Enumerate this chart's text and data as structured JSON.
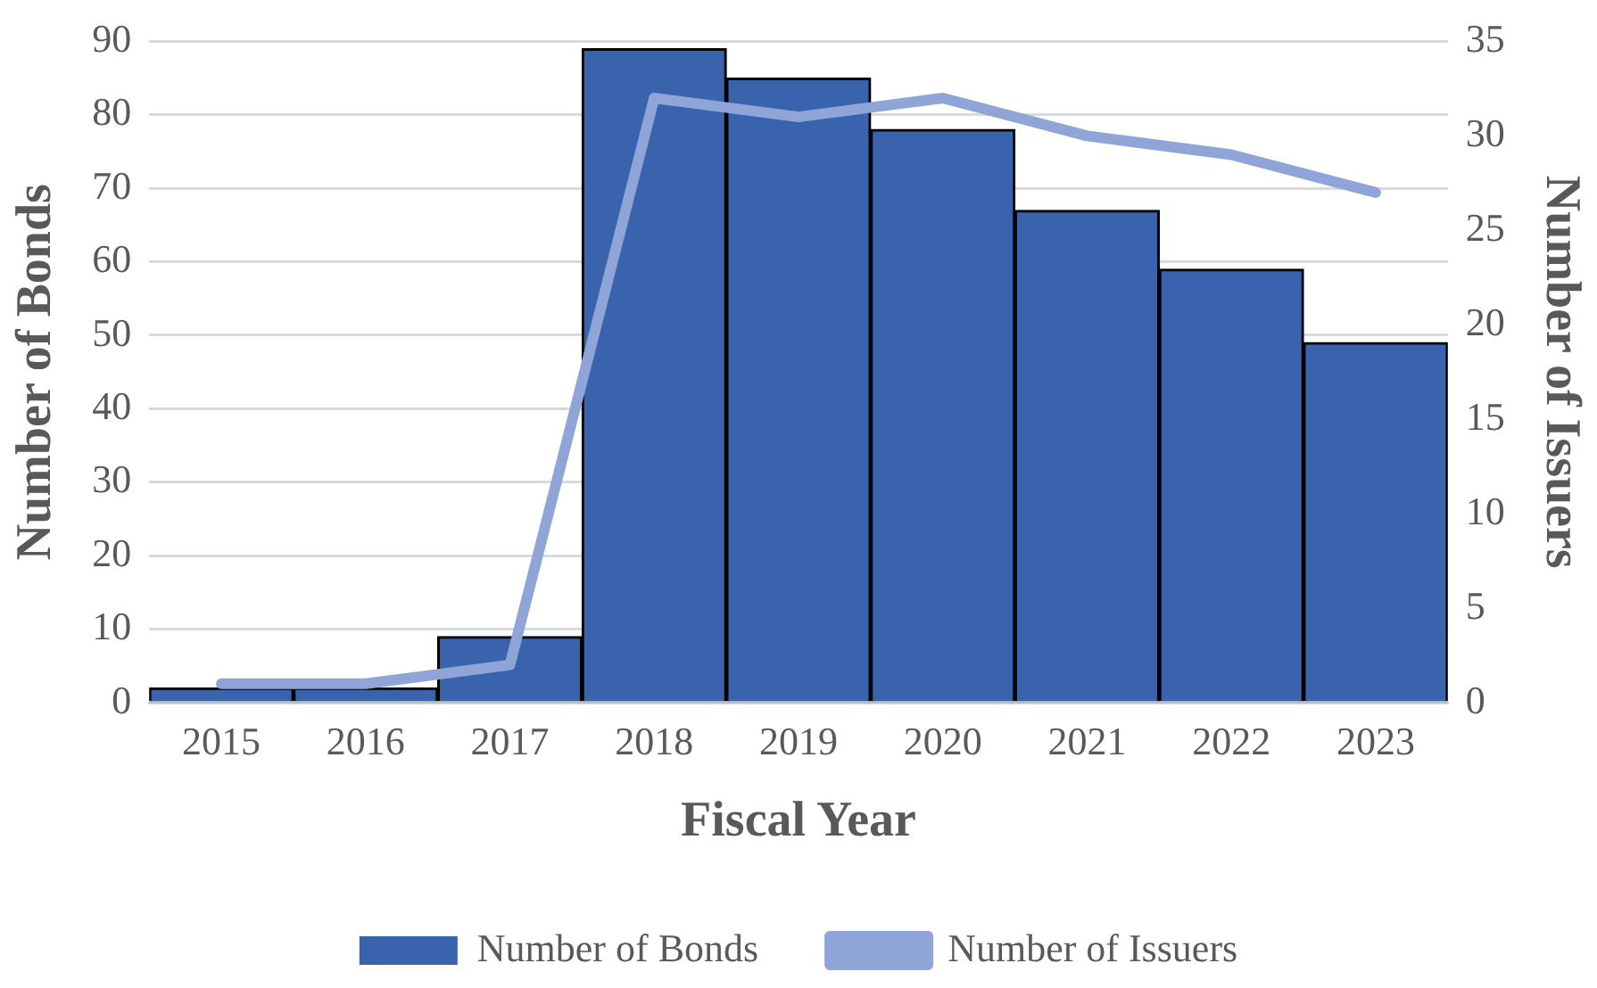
{
  "chart_data": {
    "type": "bar",
    "xlabel": "Fiscal Year",
    "ylabel": "Number of Bonds",
    "y2label": "Number of Issuers",
    "categories": [
      "2015",
      "2016",
      "2017",
      "2018",
      "2019",
      "2020",
      "2021",
      "2022",
      "2023"
    ],
    "series": [
      {
        "name": "Number of Bonds",
        "color": "#3a63ad",
        "values": [
          2,
          2,
          9,
          89,
          85,
          78,
          67,
          59,
          49
        ]
      },
      {
        "name": "Number of Issuers",
        "type": "line",
        "axis": "y2",
        "color": "#8fa5d8",
        "values": [
          1,
          1,
          2,
          32,
          31,
          32,
          30,
          29,
          27
        ]
      }
    ],
    "ylim": [
      0,
      90
    ],
    "yticks": [
      0,
      10,
      20,
      30,
      40,
      50,
      60,
      70,
      80,
      90
    ],
    "y2lim": [
      0,
      35
    ],
    "y2ticks": [
      0,
      5,
      10,
      15,
      20,
      25,
      30,
      35
    ],
    "grid": "y",
    "legend": "bottom",
    "marker": "none",
    "line_style": "solid"
  }
}
